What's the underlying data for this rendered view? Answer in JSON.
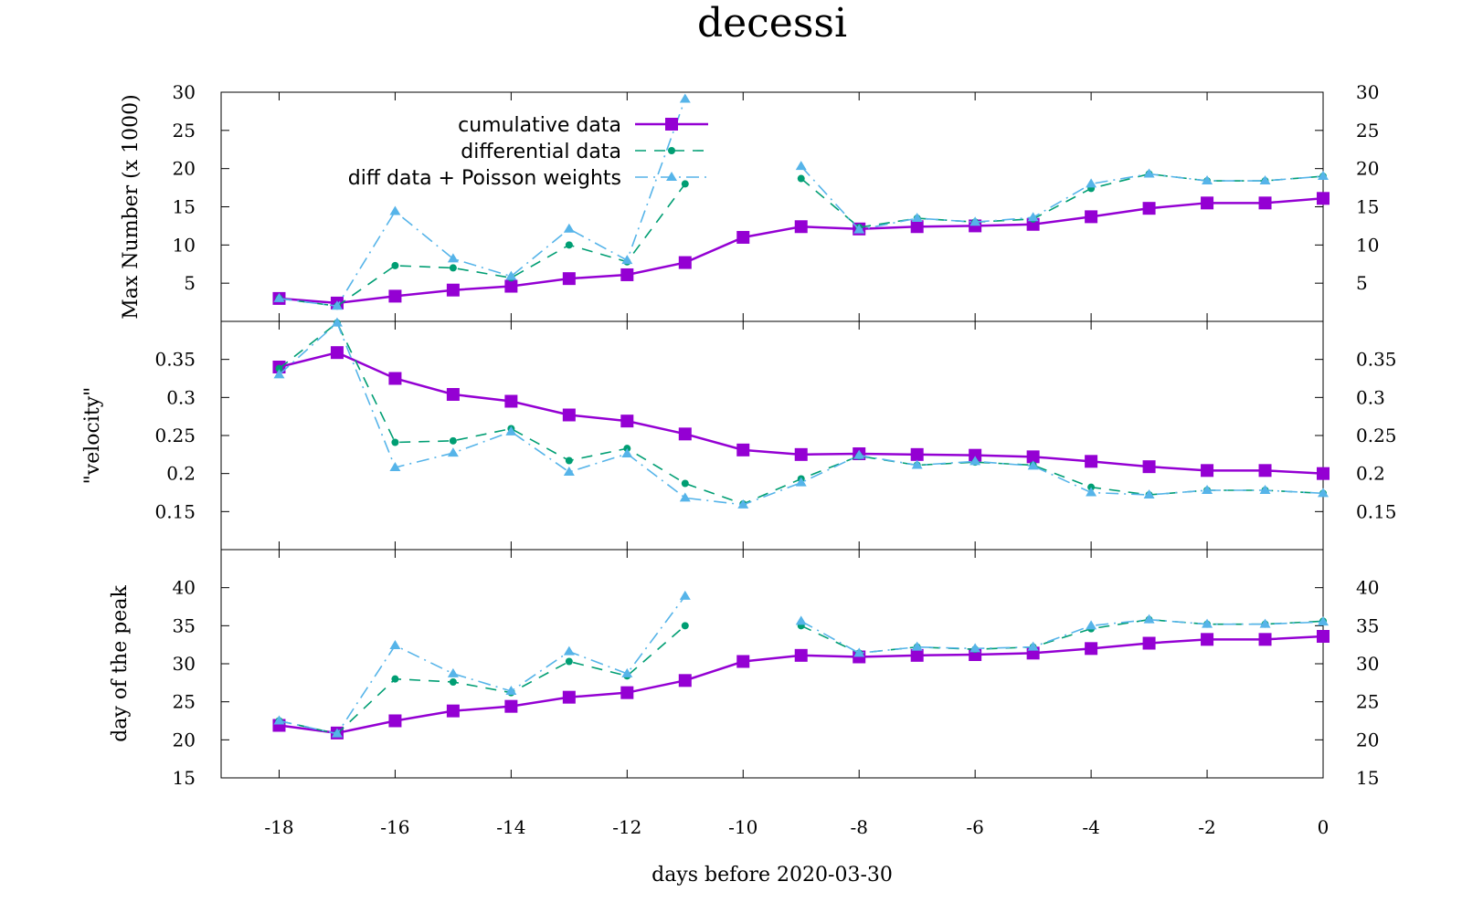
{
  "chart_data": {
    "type": "line",
    "title": "decessi",
    "xlabel": "days before 2020-03-30",
    "x": [
      -18,
      -17,
      -16,
      -15,
      -14,
      -13,
      -12,
      -11,
      -10,
      -9,
      -8,
      -7,
      -6,
      -5,
      -4,
      -3,
      -2,
      -1,
      0
    ],
    "xlim": [
      -19,
      0
    ],
    "xticks": [
      -18,
      -16,
      -14,
      -12,
      -10,
      -8,
      -6,
      -4,
      -2,
      0
    ],
    "legend": [
      {
        "name": "cumulative data",
        "color": "#9400d3"
      },
      {
        "name": "differential data",
        "color": "#009e73"
      },
      {
        "name": "diff data + Poisson weights",
        "color": "#56b4e9"
      }
    ],
    "panels": [
      {
        "ylabel": "Max Number (x 1000)",
        "ylim": [
          0,
          30
        ],
        "yticks": [
          5,
          10,
          15,
          20,
          25,
          30
        ],
        "series": [
          {
            "name": "cumulative data",
            "values": [
              3.0,
              2.4,
              3.3,
              4.1,
              4.6,
              5.6,
              6.1,
              7.7,
              11.0,
              12.4,
              12.1,
              12.4,
              12.5,
              12.7,
              13.7,
              14.8,
              15.5,
              15.5,
              16.1
            ]
          },
          {
            "name": "differential data",
            "values": [
              3.0,
              2.0,
              7.3,
              7.0,
              5.7,
              10.0,
              7.8,
              18.0,
              null,
              18.7,
              12.3,
              13.5,
              13.0,
              13.4,
              17.4,
              19.3,
              18.4,
              18.4,
              19.0
            ]
          },
          {
            "name": "diff data + Poisson weights",
            "values": [
              3.0,
              2.0,
              14.4,
              8.2,
              5.9,
              12.1,
              8.0,
              29.1,
              null,
              20.3,
              12.0,
              13.5,
              13.0,
              13.6,
              18.0,
              19.3,
              18.4,
              18.4,
              19.0
            ]
          }
        ]
      },
      {
        "ylabel": "\"velocity\"",
        "ylim": [
          0.1,
          0.4
        ],
        "yticks": [
          0.15,
          0.2,
          0.25,
          0.3,
          0.35
        ],
        "series": [
          {
            "name": "cumulative data",
            "values": [
              0.34,
              0.359,
              0.325,
              0.304,
              0.295,
              0.277,
              0.269,
              0.252,
              0.231,
              0.225,
              0.226,
              0.225,
              0.224,
              0.222,
              0.216,
              0.209,
              0.204,
              0.204,
              0.2
            ]
          },
          {
            "name": "differential data",
            "values": [
              0.338,
              0.398,
              0.241,
              0.243,
              0.259,
              0.217,
              0.233,
              0.187,
              0.16,
              0.193,
              0.223,
              0.211,
              0.215,
              0.211,
              0.182,
              0.172,
              0.178,
              0.178,
              0.174
            ]
          },
          {
            "name": "diff data + Poisson weights",
            "values": [
              0.33,
              0.398,
              0.208,
              0.227,
              0.255,
              0.202,
              0.226,
              0.168,
              0.159,
              0.188,
              0.224,
              0.211,
              0.216,
              0.21,
              0.175,
              0.172,
              0.178,
              0.178,
              0.174
            ]
          }
        ]
      },
      {
        "ylabel": "day of the peak",
        "ylim": [
          15,
          45
        ],
        "yticks": [
          15,
          20,
          25,
          30,
          35,
          40
        ],
        "series": [
          {
            "name": "cumulative data",
            "values": [
              21.9,
              20.9,
              22.5,
              23.8,
              24.4,
              25.6,
              26.2,
              27.8,
              30.3,
              31.1,
              30.9,
              31.1,
              31.2,
              31.4,
              32.0,
              32.7,
              33.2,
              33.2,
              33.6
            ]
          },
          {
            "name": "differential data",
            "values": [
              22.5,
              20.8,
              28.0,
              27.6,
              26.2,
              30.3,
              28.4,
              35.0,
              null,
              35.0,
              31.4,
              32.2,
              31.9,
              32.2,
              34.6,
              35.8,
              35.2,
              35.2,
              35.6
            ]
          },
          {
            "name": "diff data + Poisson weights",
            "values": [
              22.5,
              20.8,
              32.4,
              28.7,
              26.4,
              31.6,
              28.7,
              38.9,
              null,
              35.6,
              31.4,
              32.2,
              32.0,
              32.2,
              35.0,
              35.8,
              35.2,
              35.2,
              35.5
            ]
          }
        ]
      }
    ]
  }
}
